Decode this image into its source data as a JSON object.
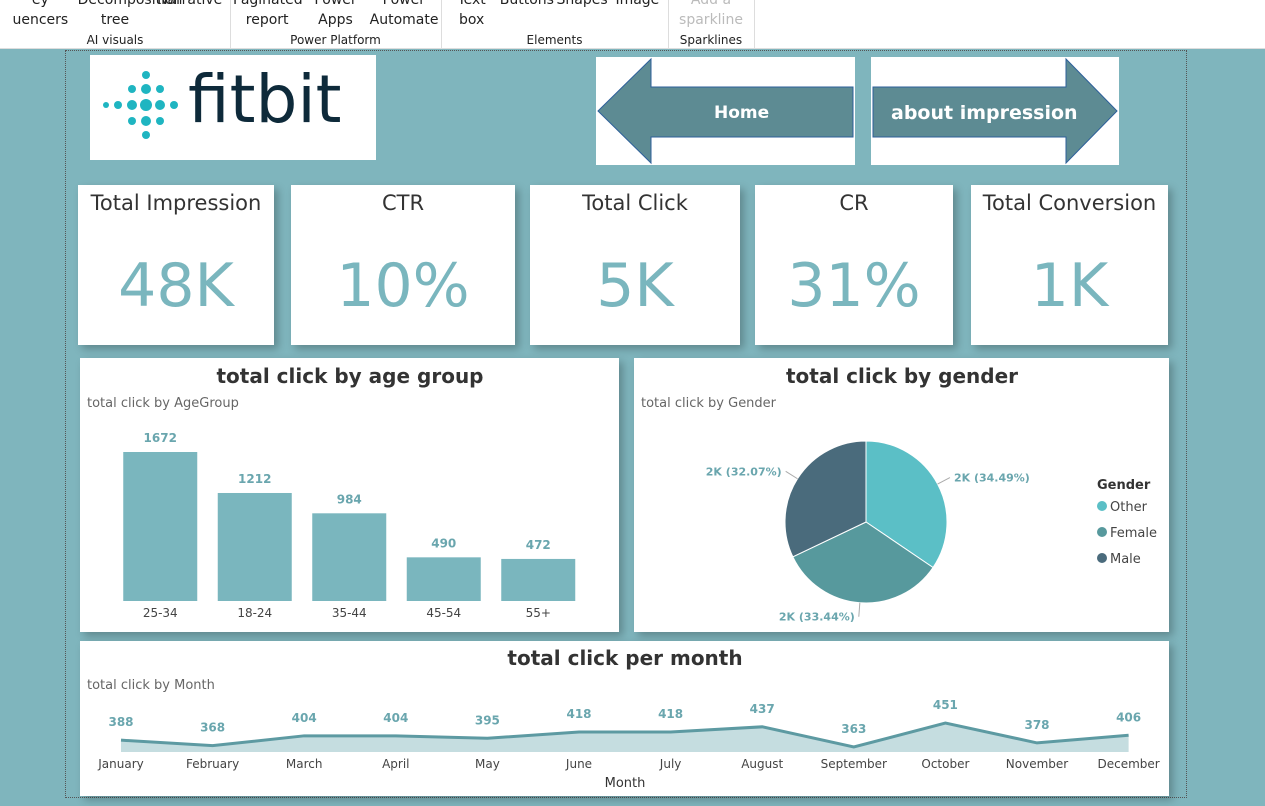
{
  "ribbon": {
    "groups": [
      {
        "items": [
          "ey uencers",
          "Decomposition tree",
          "Narrative"
        ],
        "label": "AI visuals"
      },
      {
        "items": [
          "Paginated report",
          "Power Apps",
          "Power Automate"
        ],
        "label": "Power Platform"
      },
      {
        "items": [
          "Text box",
          "Buttons",
          "Shapes",
          "Image"
        ],
        "label": "Elements"
      },
      {
        "items": [
          "Add a sparkline"
        ],
        "label": "Sparklines"
      }
    ]
  },
  "logo": "fitbit",
  "nav": {
    "home": "Home",
    "about": "about impression"
  },
  "kpis": [
    {
      "title": "Total Impression",
      "value": "48K"
    },
    {
      "title": "CTR",
      "value": "10%"
    },
    {
      "title": "Total Click",
      "value": "5K"
    },
    {
      "title": "CR",
      "value": "31%"
    },
    {
      "title": "Total Conversion",
      "value": "1K"
    }
  ],
  "chart_data": [
    {
      "type": "bar",
      "title": "total click by age group",
      "subtitle": "total click by AgeGroup",
      "categories": [
        "25-34",
        "18-24",
        "35-44",
        "45-54",
        "55+"
      ],
      "values": [
        1672,
        1212,
        984,
        490,
        472
      ],
      "color": "#7ab6be"
    },
    {
      "type": "pie",
      "title": "total click by gender",
      "subtitle": "total click by Gender",
      "legend_title": "Gender",
      "categories": [
        "Other",
        "Female",
        "Male"
      ],
      "values": [
        34.49,
        33.44,
        32.07
      ],
      "value_labels": [
        "2K (34.49%)",
        "2K (33.44%)",
        "2K (32.07%)"
      ],
      "colors": [
        "#5bbfc6",
        "#57999d",
        "#4a6b7c"
      ]
    },
    {
      "type": "line",
      "title": "total click per month",
      "subtitle": "total click by Month",
      "x_label": "Month",
      "categories": [
        "January",
        "February",
        "March",
        "April",
        "May",
        "June",
        "July",
        "August",
        "September",
        "October",
        "November",
        "December"
      ],
      "values": [
        388,
        368,
        404,
        404,
        395,
        418,
        418,
        437,
        363,
        451,
        378,
        406
      ],
      "color": "#5d9aa2"
    }
  ]
}
